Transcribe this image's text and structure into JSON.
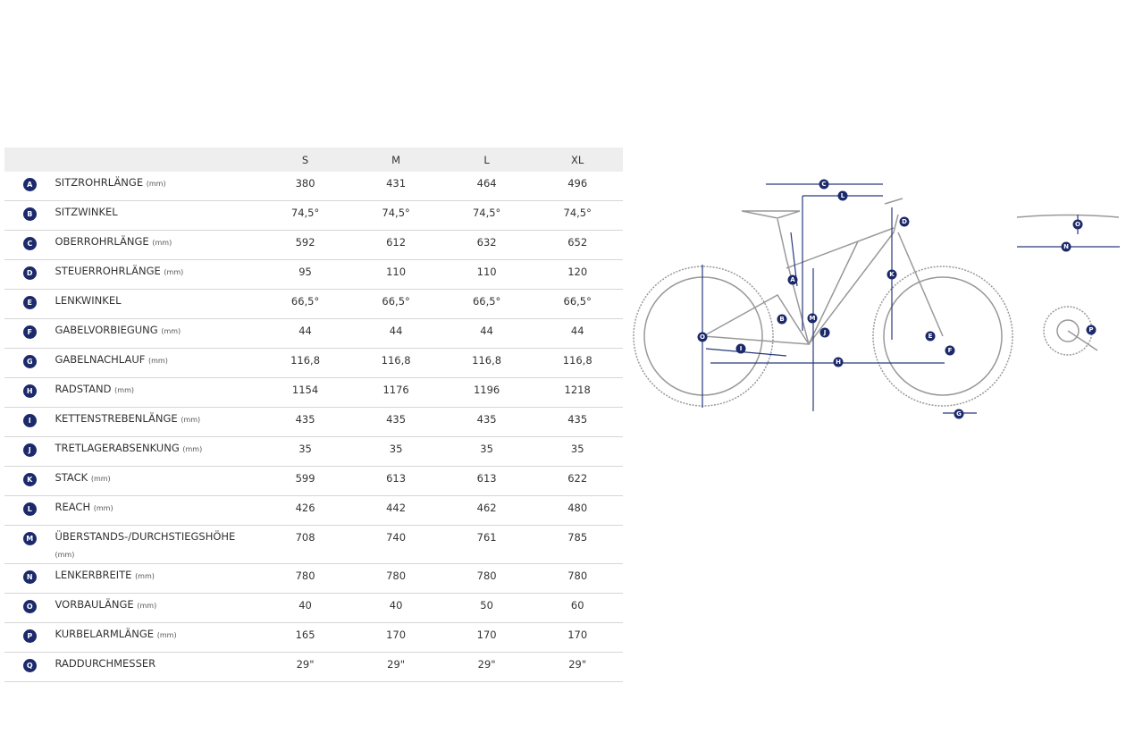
{
  "table": {
    "columns": [
      "S",
      "M",
      "L",
      "XL"
    ],
    "rows": [
      {
        "letter": "A",
        "name": "SITZROHRLÄNGE",
        "unit": "(mm)",
        "values": [
          "380",
          "431",
          "464",
          "496"
        ]
      },
      {
        "letter": "B",
        "name": "SITZWINKEL",
        "values": [
          "74,5°",
          "74,5°",
          "74,5°",
          "74,5°"
        ]
      },
      {
        "letter": "C",
        "name": "OBERROHRLÄNGE",
        "unit": "(mm)",
        "values": [
          "592",
          "612",
          "632",
          "652"
        ]
      },
      {
        "letter": "D",
        "name": "STEUERROHRLÄNGE",
        "unit": "(mm)",
        "values": [
          "95",
          "110",
          "110",
          "120"
        ]
      },
      {
        "letter": "E",
        "name": "LENKWINKEL",
        "values": [
          "66,5°",
          "66,5°",
          "66,5°",
          "66,5°"
        ]
      },
      {
        "letter": "F",
        "name": "GABELVORBIEGUNG",
        "unit": "(mm)",
        "values": [
          "44",
          "44",
          "44",
          "44"
        ]
      },
      {
        "letter": "G",
        "name": "GABELNACHLAUF",
        "unit": "(mm)",
        "values": [
          "116,8",
          "116,8",
          "116,8",
          "116,8"
        ]
      },
      {
        "letter": "H",
        "name": "RADSTAND",
        "unit": "(mm)",
        "values": [
          "1154",
          "1176",
          "1196",
          "1218"
        ]
      },
      {
        "letter": "I",
        "name": "KETTENSTREBENLÄNGE",
        "unit": "(mm)",
        "values": [
          "435",
          "435",
          "435",
          "435"
        ]
      },
      {
        "letter": "J",
        "name": "TRETLAGERABSENKUNG",
        "unit": "(mm)",
        "values": [
          "35",
          "35",
          "35",
          "35"
        ]
      },
      {
        "letter": "K",
        "name": "STACK",
        "unit": "(mm)",
        "values": [
          "599",
          "613",
          "613",
          "622"
        ]
      },
      {
        "letter": "L",
        "name": "REACH",
        "unit": "(mm)",
        "values": [
          "426",
          "442",
          "462",
          "480"
        ]
      },
      {
        "letter": "M",
        "name": "ÜBERSTANDS-/DURCHSTIEGSHÖHE",
        "unit": "(mm)",
        "values": [
          "708",
          "740",
          "761",
          "785"
        ]
      },
      {
        "letter": "N",
        "name": "LENKERBREITE",
        "unit": "(mm)",
        "values": [
          "780",
          "780",
          "780",
          "780"
        ]
      },
      {
        "letter": "O",
        "name": "VORBAULÄNGE",
        "unit": "(mm)",
        "values": [
          "40",
          "40",
          "50",
          "60"
        ]
      },
      {
        "letter": "P",
        "name": "KURBELARMLÄNGE",
        "unit": "(mm)",
        "values": [
          "165",
          "170",
          "170",
          "170"
        ]
      },
      {
        "letter": "Q",
        "name": "RADDURCHMESSER",
        "values": [
          "29\"",
          "29\"",
          "29\"",
          "29\""
        ]
      }
    ]
  }
}
